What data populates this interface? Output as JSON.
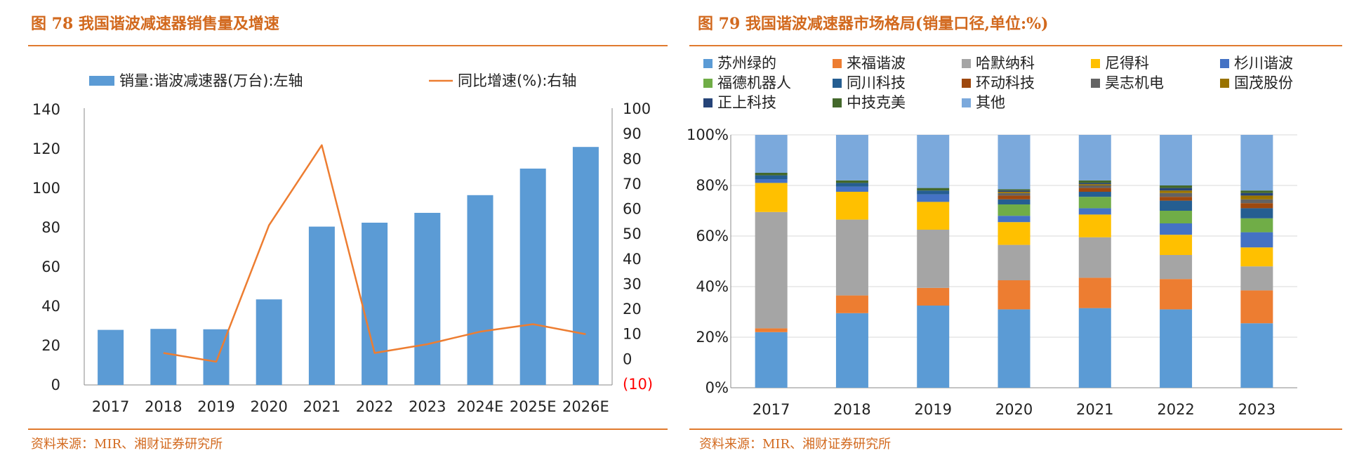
{
  "left": {
    "title": "图 78 我国谐波减速器销售量及增速",
    "source": "资料来源：MIR、湘财证券研究所"
  },
  "right": {
    "title": "图 79 我国谐波减速器市场格局(销量口径,单位:%)",
    "source": "资料来源：MIR、湘财证券研究所"
  },
  "chart_data": [
    {
      "type": "bar",
      "title": "",
      "categories": [
        "2017",
        "2018",
        "2019",
        "2020",
        "2021",
        "2022",
        "2023",
        "2024E",
        "2025E",
        "2026E"
      ],
      "series": [
        {
          "name": "销量:谐波减速器(万台):左轴",
          "type": "bar",
          "axis": "left",
          "color": "#5b9bd5",
          "values": [
            28,
            28.5,
            28.3,
            43.5,
            80.5,
            82.5,
            87.5,
            96.5,
            110,
            121
          ]
        },
        {
          "name": "同比增速(%):右轴",
          "type": "line",
          "axis": "right",
          "color": "#ed7d31",
          "values": [
            null,
            2.5,
            -1,
            53.5,
            85.5,
            2.5,
            6,
            11,
            14,
            10
          ]
        }
      ],
      "y_left": {
        "min": 0,
        "max": 140,
        "ticks": [
          "0",
          "20",
          "40",
          "60",
          "80",
          "100",
          "120",
          "140"
        ]
      },
      "y_right": {
        "min": -10,
        "max": 100,
        "ticks": [
          {
            "v": -10,
            "label": "(10)",
            "color": "#ff0000"
          },
          {
            "v": 0,
            "label": "0"
          },
          {
            "v": 10,
            "label": "10"
          },
          {
            "v": 20,
            "label": "20"
          },
          {
            "v": 30,
            "label": "30"
          },
          {
            "v": 40,
            "label": "40"
          },
          {
            "v": 50,
            "label": "50"
          },
          {
            "v": 60,
            "label": "60"
          },
          {
            "v": 70,
            "label": "70"
          },
          {
            "v": 80,
            "label": "80"
          },
          {
            "v": 90,
            "label": "90"
          },
          {
            "v": 100,
            "label": "100"
          }
        ]
      },
      "grid": false,
      "legend": "top"
    },
    {
      "type": "stacked-bar",
      "title": "",
      "categories": [
        "2017",
        "2018",
        "2019",
        "2020",
        "2021",
        "2022",
        "2023"
      ],
      "ylim": [
        0,
        100
      ],
      "y_ticks": [
        "0%",
        "20%",
        "40%",
        "60%",
        "80%",
        "100%"
      ],
      "grid": true,
      "legend": "top",
      "series": [
        {
          "name": "苏州绿的",
          "color": "#5b9bd5",
          "values": [
            22,
            29.5,
            32.5,
            31,
            31.5,
            31,
            25.5
          ]
        },
        {
          "name": "来福谐波",
          "color": "#ed7d31",
          "values": [
            1.5,
            7,
            7,
            11.5,
            12,
            12,
            13
          ]
        },
        {
          "name": "哈默纳科",
          "color": "#a5a5a5",
          "values": [
            46,
            30,
            23,
            14,
            16,
            9.5,
            9.5
          ]
        },
        {
          "name": "尼得科",
          "color": "#ffc000",
          "values": [
            11.5,
            11,
            11,
            9,
            9,
            8,
            7.5
          ]
        },
        {
          "name": "杉川谐波",
          "color": "#4472c4",
          "values": [
            1.5,
            2,
            3,
            2.5,
            2.5,
            4.5,
            6
          ]
        },
        {
          "name": "福德机器人",
          "color": "#70ad47",
          "values": [
            0,
            0,
            0,
            4.5,
            4.5,
            5,
            5.5
          ]
        },
        {
          "name": "同川科技",
          "color": "#255e91",
          "values": [
            1.5,
            1.5,
            1.5,
            2,
            2,
            4,
            4
          ]
        },
        {
          "name": "环动科技",
          "color": "#9e480e",
          "values": [
            0,
            0,
            0,
            1.5,
            1.5,
            1.5,
            2
          ]
        },
        {
          "name": "昊志机电",
          "color": "#636363",
          "values": [
            0,
            0,
            0,
            1,
            1,
            1.5,
            1.5
          ]
        },
        {
          "name": "国茂股份",
          "color": "#997300",
          "values": [
            0,
            0,
            0,
            0.5,
            0.5,
            1,
            1.5
          ]
        },
        {
          "name": "正上科技",
          "color": "#264478",
          "values": [
            0,
            0,
            0,
            0.5,
            0.5,
            1,
            1
          ]
        },
        {
          "name": "中技克美",
          "color": "#43682b",
          "values": [
            1,
            1,
            1,
            0.5,
            1,
            1,
            1
          ]
        },
        {
          "name": "其他",
          "color": "#7ba9dc",
          "values": [
            15,
            18,
            21,
            21.5,
            18,
            20,
            22
          ]
        }
      ]
    }
  ]
}
